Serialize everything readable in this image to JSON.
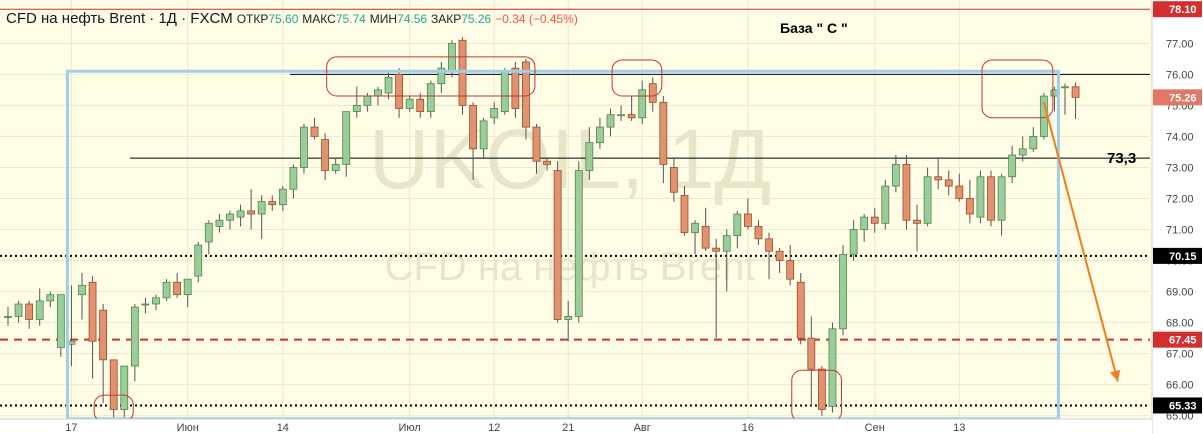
{
  "header": {
    "symbol": "CFD на нефть Brent · 1Д · FXCM",
    "open_label": "ОТКР",
    "open_value": "75.60",
    "high_label": "МАКС",
    "high_value": "75.74",
    "low_label": "МИН",
    "low_value": "74.56",
    "close_label": "ЗАКР",
    "close_value": "75.26",
    "change": "−0.34 (−0.45%)"
  },
  "annotation_title": "База \" С \"",
  "watermark": {
    "line1": "UKOIL, 1Д",
    "line2": "CFD на нефть Brent"
  },
  "chart_data": {
    "type": "candlestick",
    "y_axis": {
      "min": 64.7,
      "max": 78.3,
      "ticks": [
        65,
        66,
        67,
        68,
        69,
        70,
        71,
        72,
        73,
        74,
        75,
        76,
        77
      ]
    },
    "x_axis_labels": [
      {
        "label": "17",
        "bar": 6
      },
      {
        "label": "Июн",
        "bar": 17
      },
      {
        "label": "14",
        "bar": 26
      },
      {
        "label": "Июл",
        "bar": 38
      },
      {
        "label": "12",
        "bar": 46
      },
      {
        "label": "21",
        "bar": 53
      },
      {
        "label": "Авг",
        "bar": 60
      },
      {
        "label": "16",
        "bar": 70
      },
      {
        "label": "Сен",
        "bar": 82
      },
      {
        "label": "13",
        "bar": 90
      }
    ],
    "candles": [
      [
        68.2,
        68.5,
        67.9,
        68.2
      ],
      [
        68.2,
        68.7,
        68.0,
        68.6
      ],
      [
        68.6,
        68.7,
        67.8,
        68.1
      ],
      [
        68.1,
        69.1,
        67.9,
        68.7
      ],
      [
        68.7,
        69.0,
        68.5,
        68.9
      ],
      [
        67.2,
        68.9,
        66.9,
        68.9
      ],
      [
        67.3,
        69.2,
        66.6,
        67.4
      ],
      [
        68.9,
        69.6,
        68.1,
        69.2
      ],
      [
        69.3,
        69.5,
        66.2,
        67.4
      ],
      [
        68.4,
        68.6,
        65.4,
        66.8
      ],
      [
        66.8,
        66.8,
        64.9,
        65.2
      ],
      [
        65.2,
        66.6,
        64.8,
        66.6
      ],
      [
        66.6,
        68.6,
        66.1,
        68.5
      ],
      [
        68.6,
        68.8,
        68.3,
        68.6
      ],
      [
        68.6,
        68.9,
        68.4,
        68.8
      ],
      [
        68.8,
        69.4,
        68.7,
        69.3
      ],
      [
        69.3,
        69.6,
        68.8,
        68.9
      ],
      [
        68.9,
        69.4,
        68.5,
        69.4
      ],
      [
        69.5,
        70.6,
        69.3,
        70.5
      ],
      [
        70.6,
        71.3,
        70.2,
        71.2
      ],
      [
        71.1,
        71.5,
        70.9,
        71.3
      ],
      [
        71.3,
        71.6,
        71.0,
        71.5
      ],
      [
        71.4,
        71.8,
        71.1,
        71.6
      ],
      [
        71.6,
        72.3,
        71.0,
        71.5
      ],
      [
        71.5,
        72.1,
        70.7,
        71.9
      ],
      [
        71.9,
        72.1,
        71.6,
        71.8
      ],
      [
        71.8,
        72.4,
        71.6,
        72.3
      ],
      [
        72.3,
        73.1,
        72.0,
        73.0
      ],
      [
        73.0,
        74.4,
        72.8,
        74.3
      ],
      [
        74.3,
        74.6,
        73.9,
        74.0
      ],
      [
        73.9,
        74.1,
        72.6,
        72.9
      ],
      [
        72.9,
        73.3,
        72.8,
        73.1
      ],
      [
        73.1,
        74.8,
        72.7,
        74.8
      ],
      [
        74.8,
        75.6,
        74.6,
        75.0
      ],
      [
        75.0,
        75.4,
        74.8,
        75.3
      ],
      [
        75.3,
        75.6,
        75.0,
        75.5
      ],
      [
        75.4,
        76.1,
        75.2,
        75.9
      ],
      [
        76.0,
        76.2,
        74.6,
        74.9
      ],
      [
        74.9,
        75.3,
        74.8,
        75.2
      ],
      [
        75.2,
        75.4,
        74.6,
        74.8
      ],
      [
        74.8,
        75.8,
        74.6,
        75.7
      ],
      [
        75.7,
        76.4,
        75.4,
        76.2
      ],
      [
        76.1,
        77.1,
        75.9,
        77.0
      ],
      [
        77.1,
        77.2,
        74.7,
        75.0
      ],
      [
        75.0,
        75.1,
        72.6,
        73.6
      ],
      [
        73.6,
        74.6,
        73.3,
        74.5
      ],
      [
        74.6,
        75.1,
        74.4,
        74.9
      ],
      [
        74.8,
        76.2,
        74.7,
        76.1
      ],
      [
        76.2,
        76.4,
        74.6,
        74.9
      ],
      [
        76.4,
        76.5,
        73.9,
        74.3
      ],
      [
        74.3,
        74.4,
        72.8,
        73.2
      ],
      [
        73.2,
        73.3,
        72.9,
        73.1
      ],
      [
        72.9,
        73.2,
        68.0,
        68.1
      ],
      [
        68.1,
        68.7,
        67.4,
        68.2
      ],
      [
        68.2,
        73.2,
        68.0,
        72.9
      ],
      [
        72.9,
        74.3,
        72.6,
        73.8
      ],
      [
        73.8,
        74.6,
        73.6,
        74.3
      ],
      [
        74.3,
        74.9,
        74.0,
        74.7
      ],
      [
        74.7,
        75.0,
        74.5,
        74.7
      ],
      [
        74.7,
        75.3,
        74.5,
        74.6
      ],
      [
        74.6,
        75.8,
        74.4,
        75.5
      ],
      [
        75.7,
        75.9,
        74.8,
        75.1
      ],
      [
        75.1,
        75.3,
        72.5,
        73.1
      ],
      [
        73.0,
        73.3,
        71.9,
        72.2
      ],
      [
        72.1,
        72.4,
        70.8,
        70.9
      ],
      [
        70.9,
        71.3,
        70.2,
        71.2
      ],
      [
        71.1,
        71.7,
        70.3,
        70.4
      ],
      [
        70.4,
        70.7,
        67.5,
        70.3
      ],
      [
        70.3,
        71.0,
        69.0,
        70.8
      ],
      [
        70.8,
        71.6,
        70.4,
        71.5
      ],
      [
        71.5,
        72.0,
        71.0,
        71.1
      ],
      [
        71.1,
        71.3,
        70.5,
        70.7
      ],
      [
        70.7,
        70.9,
        69.4,
        70.3
      ],
      [
        70.3,
        70.4,
        69.6,
        70.0
      ],
      [
        70.0,
        70.5,
        69.2,
        69.4
      ],
      [
        69.3,
        69.6,
        67.3,
        67.5
      ],
      [
        67.5,
        68.2,
        65.3,
        66.5
      ],
      [
        66.5,
        66.6,
        65.0,
        65.2
      ],
      [
        65.3,
        68.0,
        65.1,
        67.8
      ],
      [
        67.8,
        70.5,
        67.6,
        70.2
      ],
      [
        70.2,
        71.3,
        70.0,
        71.0
      ],
      [
        71.0,
        71.5,
        70.6,
        71.4
      ],
      [
        71.4,
        71.7,
        70.9,
        71.2
      ],
      [
        71.2,
        72.6,
        71.0,
        72.4
      ],
      [
        72.4,
        73.4,
        72.2,
        73.1
      ],
      [
        73.1,
        73.4,
        71.0,
        71.3
      ],
      [
        71.3,
        71.8,
        70.3,
        71.2
      ],
      [
        71.2,
        73.0,
        71.1,
        72.7
      ],
      [
        72.7,
        73.3,
        72.3,
        72.6
      ],
      [
        72.6,
        72.9,
        72.1,
        72.4
      ],
      [
        72.4,
        72.8,
        71.9,
        72.0
      ],
      [
        72.0,
        72.6,
        71.2,
        71.5
      ],
      [
        71.4,
        72.9,
        71.2,
        72.7
      ],
      [
        72.7,
        72.9,
        71.1,
        71.3
      ],
      [
        71.3,
        72.8,
        70.8,
        72.7
      ],
      [
        72.7,
        73.7,
        72.5,
        73.4
      ],
      [
        73.4,
        74.0,
        73.2,
        73.6
      ],
      [
        73.6,
        74.3,
        73.5,
        74.0
      ],
      [
        74.0,
        75.4,
        73.9,
        75.3
      ],
      [
        75.3,
        75.6,
        74.8,
        75.5
      ],
      [
        75.6,
        75.7,
        74.7,
        75.6
      ],
      [
        75.6,
        75.74,
        74.56,
        75.26
      ]
    ],
    "horizontal_lines": [
      {
        "price": 78.1,
        "label": "78.10",
        "style": "solid",
        "color": "#d32f2f"
      },
      {
        "price": 76.0,
        "style": "solid",
        "color": "#000000"
      },
      {
        "price": 73.3,
        "label": "73,3",
        "style": "solid",
        "color": "#000000"
      },
      {
        "price": 70.15,
        "label": "70.15",
        "style": "dotted",
        "color": "#000000"
      },
      {
        "price": 67.45,
        "label": "67.45",
        "style": "dashed",
        "color": "#d32f2f"
      },
      {
        "price": 65.33,
        "label": "65.33",
        "style": "dotted",
        "color": "#000000"
      }
    ],
    "last_price": {
      "price": 75.26,
      "label": "75.26",
      "color": "#e07868"
    },
    "rectangle": {
      "bar_start": 6,
      "bar_end": 99,
      "price_top": 76.1,
      "price_bottom": 64.9,
      "color": "#9cd0ea"
    },
    "ellipses": [
      {
        "bar_start": 9,
        "bar_end": 11,
        "price_top": 65.6,
        "price_bottom": 64.9
      },
      {
        "bar_start": 31,
        "bar_end": 49,
        "price_top": 76.5,
        "price_bottom": 75.4
      },
      {
        "bar_start": 58,
        "bar_end": 61,
        "price_top": 76.4,
        "price_bottom": 75.4
      },
      {
        "bar_start": 75,
        "bar_end": 78,
        "price_top": 66.4,
        "price_bottom": 64.9
      },
      {
        "bar_start": 93,
        "bar_end": 98,
        "price_top": 76.4,
        "price_bottom": 74.7
      }
    ],
    "arrow": {
      "from_bar": 98,
      "from_price": 75.1,
      "to_bar": 105,
      "to_price": 66.1,
      "color": "#ef7d22"
    },
    "colors": {
      "up": "#9ccc9c",
      "up_border": "#4a8a4a",
      "down": "#e0936e",
      "down_border": "#9e4a30",
      "axis_tag_bg": "#000000",
      "axis_red_tag": "#d32f2f"
    }
  }
}
